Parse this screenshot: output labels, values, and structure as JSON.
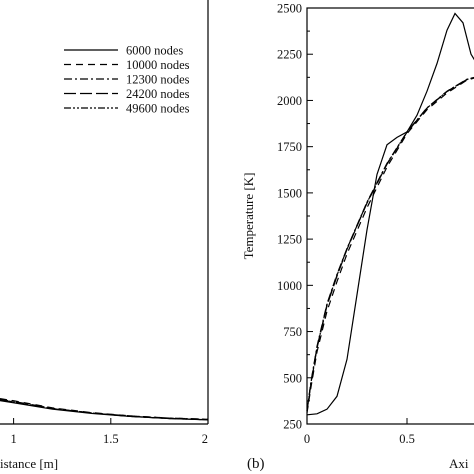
{
  "chart_data": [
    {
      "type": "line",
      "panel_label": "",
      "xlabel": "istance [m]",
      "ylabel": "",
      "x_ticks": [
        "1",
        "1.5",
        "2"
      ],
      "xlim": [
        0.93,
        2.0
      ],
      "ylim": [
        0,
        1
      ],
      "legend": {
        "placement": "top-right"
      },
      "series": [
        {
          "name": "6000 nodes",
          "dash": "solid",
          "x": [
            0.93,
            1.0,
            1.2,
            1.4,
            1.6,
            1.8,
            2.0
          ],
          "y": [
            0.055,
            0.05,
            0.035,
            0.025,
            0.018,
            0.013,
            0.01
          ]
        },
        {
          "name": "10000 nodes",
          "dash": "dashed",
          "x": [
            0.93,
            1.0,
            1.2,
            1.4,
            1.6,
            1.8,
            2.0
          ],
          "y": [
            0.06,
            0.055,
            0.038,
            0.027,
            0.019,
            0.014,
            0.011
          ]
        },
        {
          "name": "12300 nodes",
          "dash": "dashdot",
          "x": [
            0.93,
            1.0,
            1.2,
            1.4,
            1.6,
            1.8,
            2.0
          ],
          "y": [
            0.058,
            0.053,
            0.037,
            0.026,
            0.019,
            0.014,
            0.011
          ]
        },
        {
          "name": "24200 nodes",
          "dash": "longdash",
          "x": [
            0.93,
            1.0,
            1.2,
            1.4,
            1.6,
            1.8,
            2.0
          ],
          "y": [
            0.057,
            0.052,
            0.036,
            0.026,
            0.018,
            0.013,
            0.01
          ]
        },
        {
          "name": "49600 nodes",
          "dash": "dashdotdot",
          "x": [
            0.93,
            1.0,
            1.2,
            1.4,
            1.6,
            1.8,
            2.0
          ],
          "y": [
            0.057,
            0.052,
            0.036,
            0.026,
            0.018,
            0.013,
            0.01
          ]
        }
      ]
    },
    {
      "type": "line",
      "panel_label": "(b)",
      "xlabel": "Axi",
      "ylabel": "Temperature [K]",
      "x_ticks": [
        "0",
        "0.5"
      ],
      "y_ticks": [
        "250",
        "500",
        "750",
        "1000",
        "1250",
        "1500",
        "1750",
        "2000",
        "2250",
        "2500"
      ],
      "xlim": [
        0,
        1.0
      ],
      "ylim": [
        250,
        2500
      ],
      "series": [
        {
          "name": "6000 nodes",
          "dash": "solid",
          "x": [
            0,
            0.05,
            0.1,
            0.15,
            0.2,
            0.25,
            0.3,
            0.35,
            0.4,
            0.45,
            0.5,
            0.55,
            0.6,
            0.65,
            0.7,
            0.74,
            0.78,
            0.82,
            0.86,
            0.9,
            0.95,
            1.0
          ],
          "y": [
            300,
            305,
            330,
            400,
            600,
            950,
            1300,
            1600,
            1760,
            1800,
            1830,
            1920,
            2050,
            2200,
            2380,
            2470,
            2420,
            2250,
            2180,
            2150,
            2140,
            2135
          ]
        },
        {
          "name": "10000 nodes",
          "dash": "dashed",
          "x": [
            0,
            0.02,
            0.05,
            0.1,
            0.15,
            0.2,
            0.3,
            0.4,
            0.5,
            0.6,
            0.7,
            0.8,
            0.9,
            1.0
          ],
          "y": [
            310,
            450,
            640,
            860,
            1020,
            1170,
            1420,
            1640,
            1820,
            1950,
            2040,
            2110,
            2140,
            2145
          ]
        },
        {
          "name": "12300 nodes",
          "dash": "dashdot",
          "x": [
            0,
            0.02,
            0.05,
            0.1,
            0.15,
            0.2,
            0.3,
            0.4,
            0.5,
            0.6,
            0.7,
            0.8,
            0.9,
            1.0
          ],
          "y": [
            320,
            480,
            670,
            900,
            1060,
            1200,
            1450,
            1660,
            1830,
            1960,
            2050,
            2115,
            2142,
            2146
          ]
        },
        {
          "name": "24200 nodes",
          "dash": "longdash",
          "x": [
            0,
            0.02,
            0.05,
            0.1,
            0.15,
            0.2,
            0.3,
            0.4,
            0.5,
            0.6,
            0.7,
            0.8,
            0.9,
            1.0
          ],
          "y": [
            320,
            470,
            660,
            890,
            1050,
            1195,
            1445,
            1655,
            1828,
            1958,
            2048,
            2113,
            2141,
            2146
          ]
        },
        {
          "name": "49600 nodes",
          "dash": "dashdotdot",
          "x": [
            0,
            0.02,
            0.05,
            0.1,
            0.15,
            0.2,
            0.3,
            0.4,
            0.5,
            0.6,
            0.7,
            0.8,
            0.9,
            1.0
          ],
          "y": [
            322,
            475,
            665,
            895,
            1055,
            1198,
            1448,
            1658,
            1829,
            1959,
            2049,
            2114,
            2141,
            2146
          ]
        }
      ]
    }
  ]
}
